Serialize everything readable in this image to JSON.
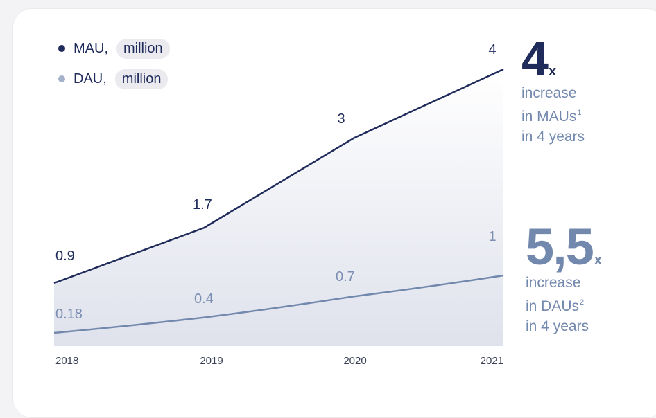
{
  "colors": {
    "mau": "#1f2b5a",
    "dau": "#7288ad",
    "dau_legend_dot": "#a4b2cc",
    "area_fill": "#dfe2ec",
    "mau_label": "#1e2a5a",
    "dau_label": "#7c8fb3",
    "axis_label": "#3a3f55"
  },
  "legend": {
    "mau_name": "MAU,",
    "mau_unit": "million",
    "dau_name": "DAU,",
    "dau_unit": "million"
  },
  "stats": {
    "mau": {
      "big": "4",
      "x": "x",
      "line1": "increase",
      "line2": "in MAUs",
      "sup": "1",
      "line3": "in 4 years"
    },
    "dau": {
      "big": "5,5",
      "x": "x",
      "line1": "increase",
      "line2": "in DAUs",
      "sup": "2",
      "line3": "in 4 years"
    }
  },
  "chart_data": {
    "type": "area",
    "categories": [
      "2018",
      "2019",
      "2020",
      "2021"
    ],
    "series": [
      {
        "name": "MAU",
        "unit": "million",
        "values": [
          0.9,
          1.7,
          3,
          4
        ],
        "labels": [
          "0.9",
          "1.7",
          "3",
          "4"
        ]
      },
      {
        "name": "DAU",
        "unit": "million",
        "values": [
          0.18,
          0.4,
          0.7,
          1
        ],
        "labels": [
          "0.18",
          "0.4",
          "0.7",
          "1"
        ]
      }
    ],
    "grid": false,
    "legend_position": "top-left"
  }
}
